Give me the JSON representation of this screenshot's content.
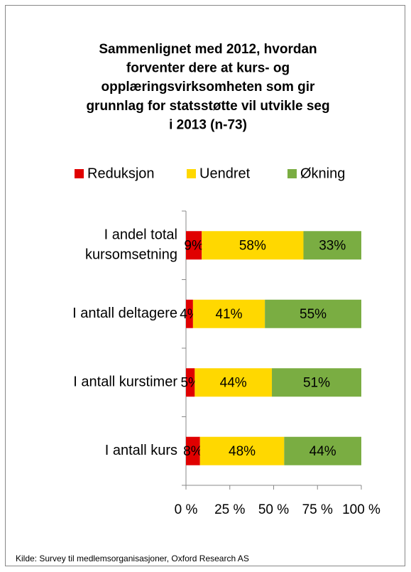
{
  "chart_data": {
    "type": "stacked_barh",
    "title": "Sammenlignet med 2012,  hvordan\nforventer dere at kurs- og\nopplæringsvirksomheten som gir\ngrunnlag for statsstøtte vil utvikle seg\ni 2013 (n-73)",
    "categories": [
      "I andel total\nkursomsetning",
      "I antall deltagere",
      "I antall kurstimer",
      "I antall kurs"
    ],
    "series": [
      {
        "name": "Reduksjon",
        "color": "#e00000",
        "values": [
          9,
          4,
          5,
          8
        ],
        "value_labels": [
          "9%",
          "4%",
          "5%",
          "8%"
        ]
      },
      {
        "name": "Uendret",
        "color": "#ffd800",
        "values": [
          58,
          41,
          44,
          48
        ],
        "value_labels": [
          "58%",
          "41%",
          "44%",
          "48%"
        ]
      },
      {
        "name": "Økning",
        "color": "#7aad42",
        "values": [
          33,
          55,
          51,
          44
        ],
        "value_labels": [
          "33%",
          "55%",
          "51%",
          "44%"
        ]
      }
    ],
    "xlim": [
      0,
      100
    ],
    "xticks": [
      {
        "value": 0,
        "label": "0 %"
      },
      {
        "value": 25,
        "label": "25 %"
      },
      {
        "value": 50,
        "label": "50 %"
      },
      {
        "value": 75,
        "label": "75 %"
      },
      {
        "value": 100,
        "label": "100 %"
      }
    ],
    "legend": "top",
    "source": "Kilde: Survey til medlemsorganisasjoner, Oxford Research AS"
  }
}
